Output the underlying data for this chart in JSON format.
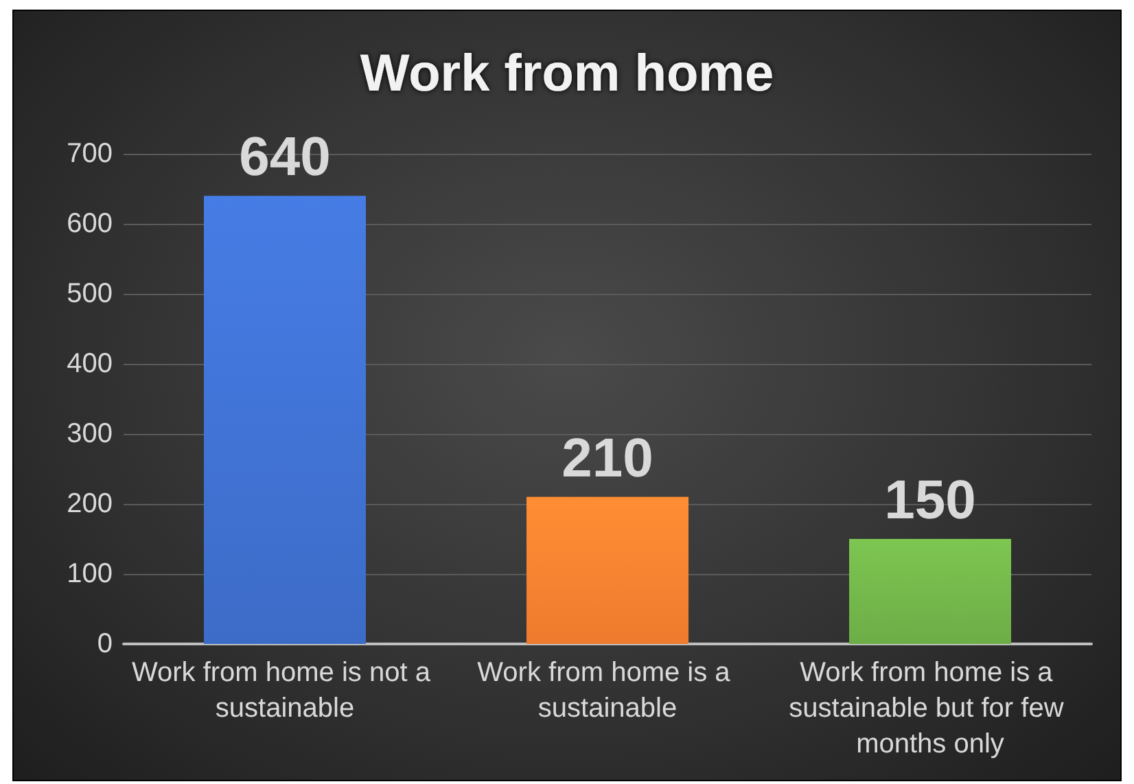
{
  "chart_data": {
    "type": "bar",
    "title": "Work from home",
    "categories": [
      "Work from home is not a sustainable",
      "Work from home is a sustainable",
      "Work from home is a sustainable but for few months only"
    ],
    "values": [
      640,
      210,
      150
    ],
    "colors": [
      "#3d6cc8",
      "#ee7b2e",
      "#6dad47"
    ],
    "ylim": [
      0,
      700
    ],
    "yticks": [
      0,
      100,
      200,
      300,
      400,
      500,
      600,
      700
    ],
    "grid": "y",
    "data_labels": true
  }
}
